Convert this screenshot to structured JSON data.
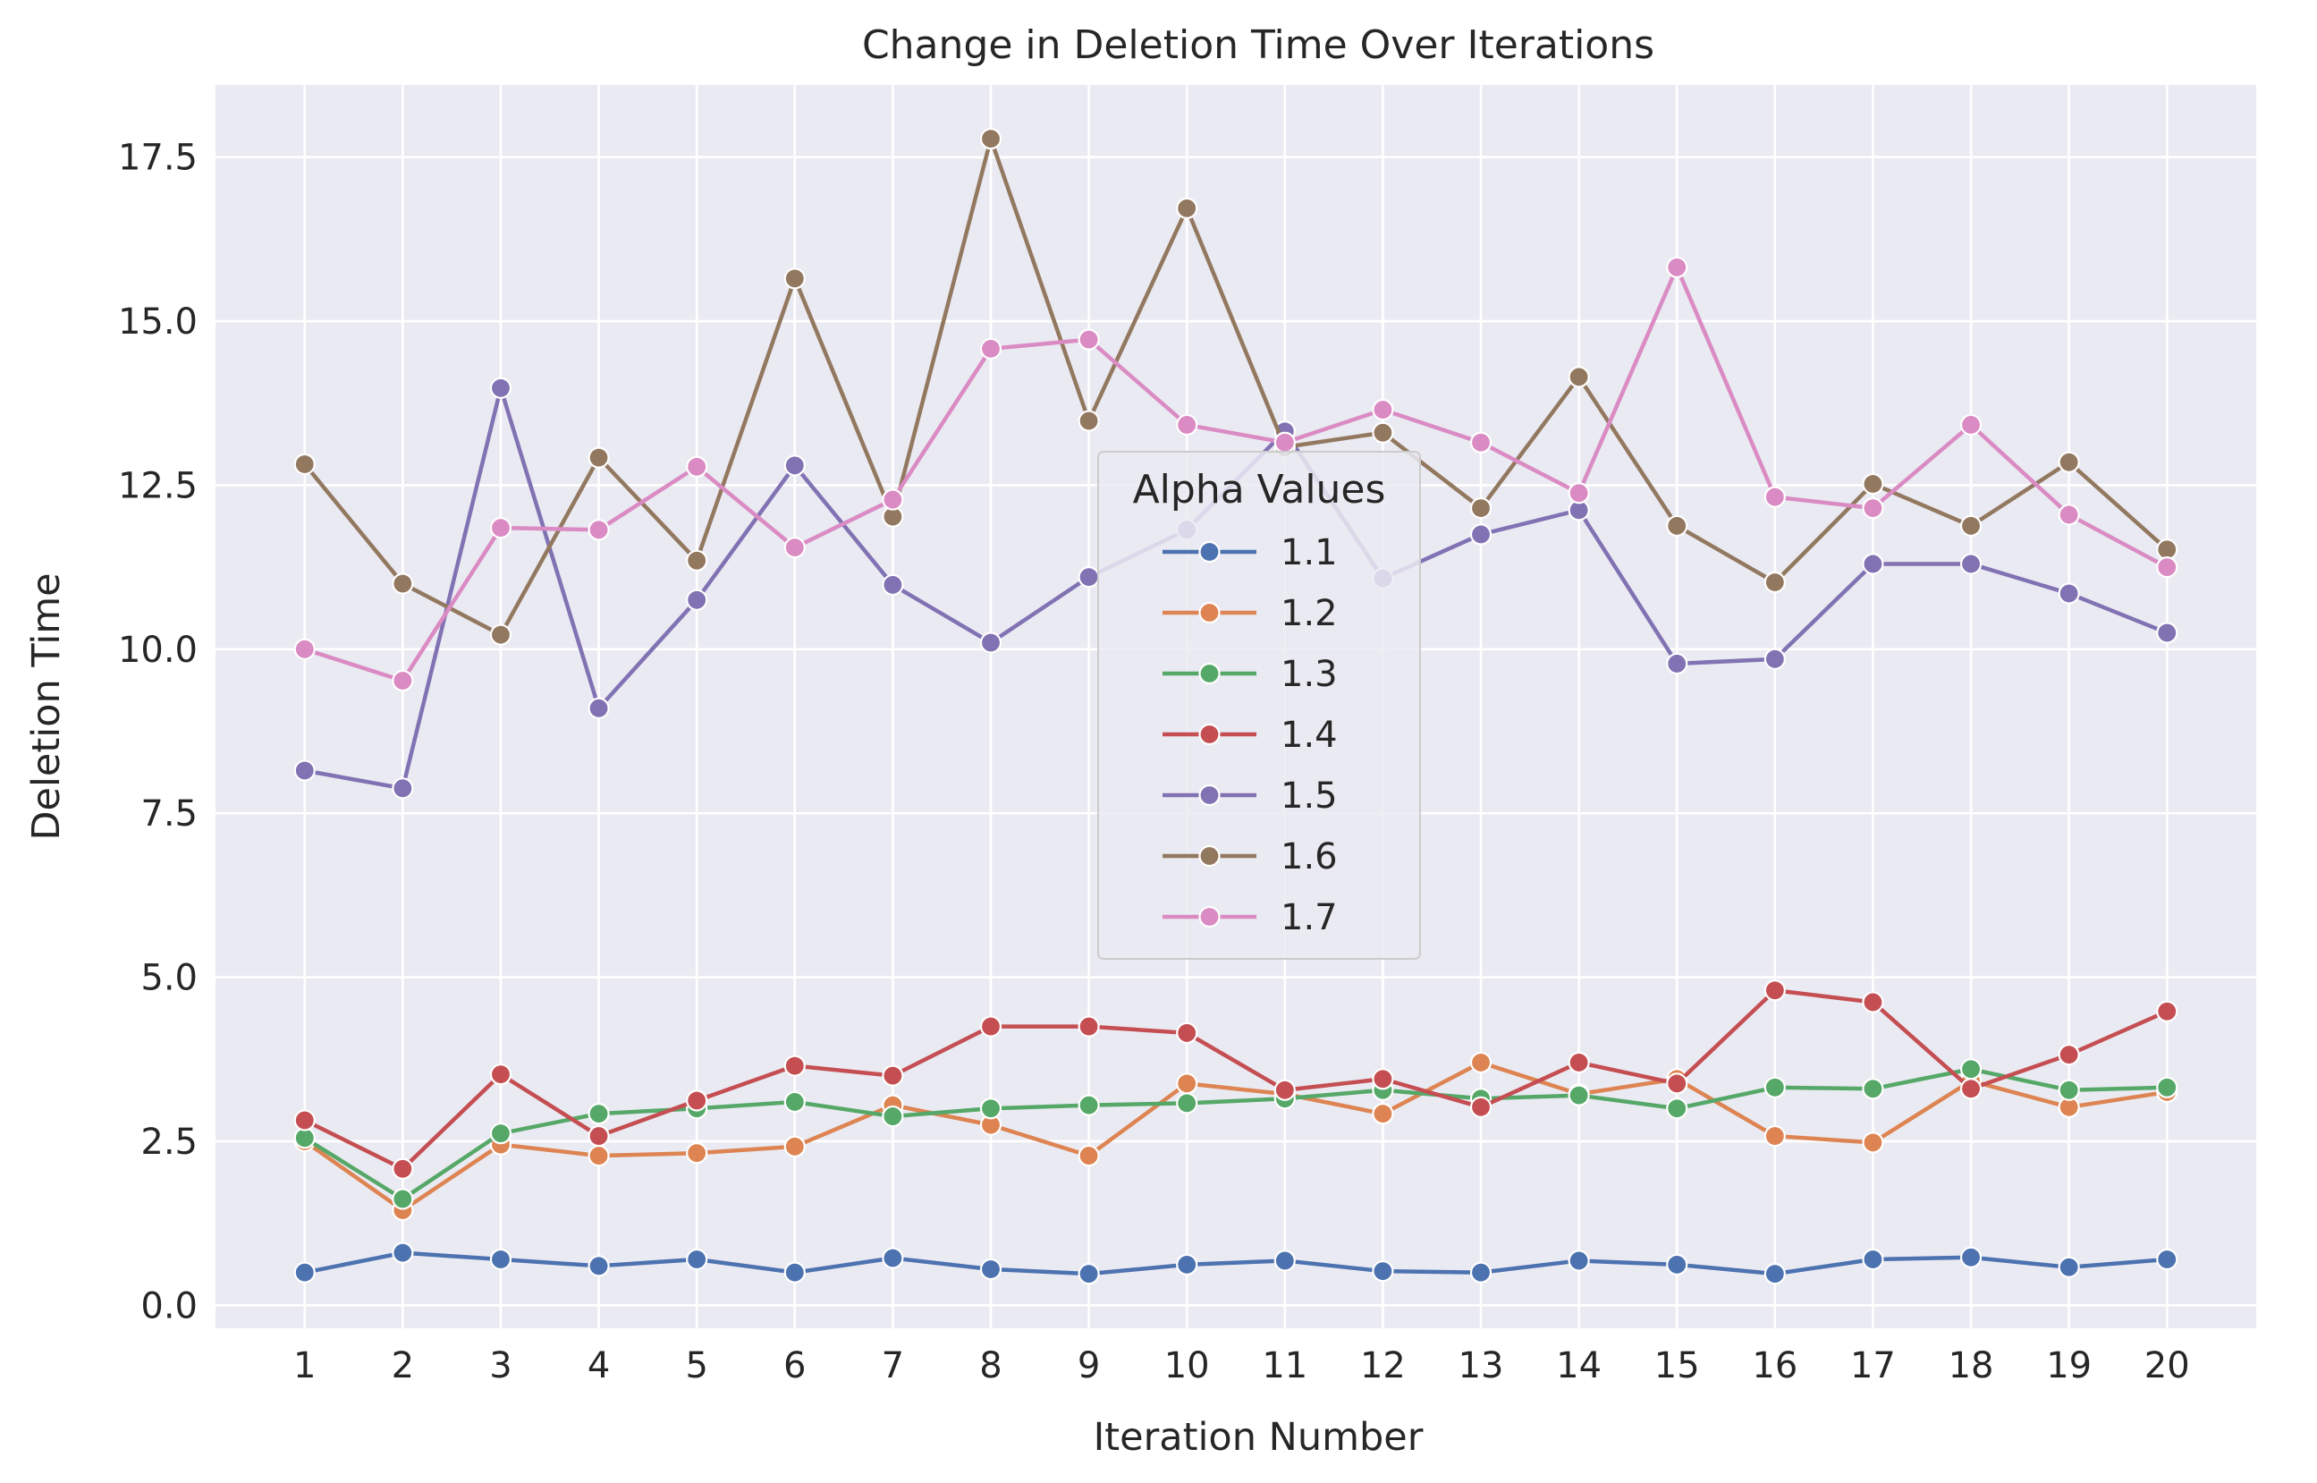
{
  "chart_data": {
    "type": "line",
    "title": "Change in Deletion Time Over Iterations",
    "xlabel": "Iteration Number",
    "ylabel": "Deletion Time",
    "ylim": [
      -0.35,
      18.6
    ],
    "yticks": [
      0.0,
      2.5,
      5.0,
      7.5,
      10.0,
      12.5,
      15.0,
      17.5
    ],
    "ytick_labels": [
      "0.0",
      "2.5",
      "5.0",
      "7.5",
      "10.0",
      "12.5",
      "15.0",
      "17.5"
    ],
    "x": [
      1,
      2,
      3,
      4,
      5,
      6,
      7,
      8,
      9,
      10,
      11,
      12,
      13,
      14,
      15,
      16,
      17,
      18,
      19,
      20
    ],
    "x_labels": [
      "1",
      "2",
      "3",
      "4",
      "5",
      "6",
      "7",
      "8",
      "9",
      "10",
      "11",
      "12",
      "13",
      "14",
      "15",
      "16",
      "17",
      "18",
      "19",
      "20"
    ],
    "grid": true,
    "background": "#eaeaf2",
    "legend": {
      "title": "Alpha Values",
      "placement": "center"
    },
    "series": [
      {
        "name": "1.1",
        "color": "#4c72b0",
        "values": [
          0.5,
          0.8,
          0.7,
          0.6,
          0.7,
          0.5,
          0.72,
          0.55,
          0.48,
          0.62,
          0.68,
          0.52,
          0.5,
          0.68,
          0.62,
          0.48,
          0.7,
          0.73,
          0.58,
          0.7
        ]
      },
      {
        "name": "1.2",
        "color": "#dd8452",
        "values": [
          2.5,
          1.45,
          2.45,
          2.28,
          2.32,
          2.42,
          3.05,
          2.75,
          2.28,
          3.38,
          3.22,
          2.92,
          3.7,
          3.22,
          3.45,
          2.58,
          2.48,
          3.42,
          3.02,
          3.25
        ]
      },
      {
        "name": "1.3",
        "color": "#55a868",
        "values": [
          2.55,
          1.62,
          2.62,
          2.92,
          3.0,
          3.1,
          2.88,
          3.0,
          3.05,
          3.08,
          3.15,
          3.28,
          3.15,
          3.2,
          3.0,
          3.32,
          3.3,
          3.6,
          3.28,
          3.32
        ]
      },
      {
        "name": "1.4",
        "color": "#c44e52",
        "values": [
          2.82,
          2.08,
          3.52,
          2.58,
          3.12,
          3.65,
          3.5,
          4.25,
          4.25,
          4.15,
          3.28,
          3.45,
          3.02,
          3.7,
          3.38,
          4.8,
          4.62,
          3.3,
          3.82,
          4.48
        ]
      },
      {
        "name": "1.5",
        "color": "#8172b3",
        "values": [
          8.15,
          7.88,
          13.98,
          9.1,
          10.75,
          12.8,
          10.98,
          10.1,
          11.1,
          11.82,
          13.32,
          11.08,
          11.75,
          12.12,
          9.78,
          9.85,
          11.3,
          11.3,
          10.85,
          10.25
        ]
      },
      {
        "name": "1.6",
        "color": "#937860",
        "values": [
          12.82,
          11.0,
          10.22,
          12.92,
          11.35,
          15.65,
          12.02,
          17.78,
          13.48,
          16.72,
          13.08,
          13.3,
          12.15,
          14.15,
          11.88,
          11.02,
          12.52,
          11.88,
          12.85,
          11.52
        ]
      },
      {
        "name": "1.7",
        "color": "#da8bc3",
        "values": [
          10.0,
          9.52,
          11.85,
          11.82,
          12.78,
          11.55,
          12.28,
          14.58,
          14.72,
          13.42,
          13.15,
          13.65,
          13.15,
          12.38,
          15.82,
          12.32,
          12.15,
          13.42,
          12.05,
          11.25
        ]
      }
    ]
  }
}
